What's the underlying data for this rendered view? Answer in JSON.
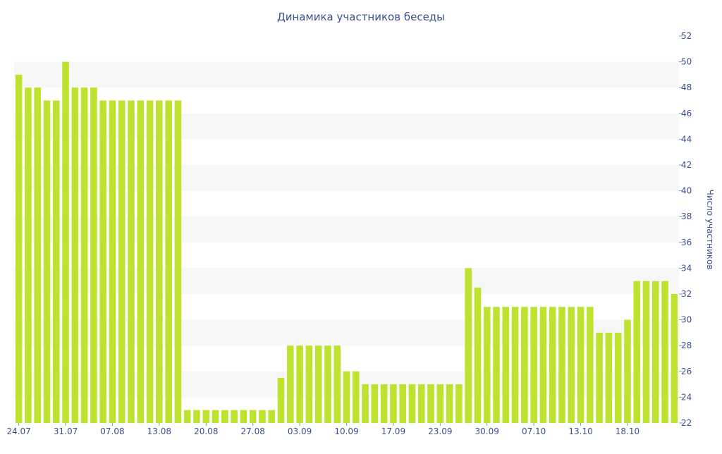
{
  "chart_data": {
    "type": "bar",
    "title": "Динамика участников беседы",
    "ylabel": "Число участников",
    "xlabel": "",
    "ylim": [
      22,
      52
    ],
    "y_ticks": [
      22,
      24,
      26,
      28,
      30,
      32,
      34,
      36,
      38,
      40,
      42,
      44,
      46,
      48,
      50,
      52
    ],
    "y_axis_side": "right",
    "x_ticks": [
      "24.07",
      "31.07",
      "07.08",
      "13.08",
      "20.08",
      "27.08",
      "03.09",
      "10.09",
      "17.09",
      "23.09",
      "30.09",
      "07.10",
      "13.10",
      "18.10"
    ],
    "x_tick_positions": [
      0,
      5,
      10,
      15,
      20,
      25,
      30,
      35,
      40,
      45,
      50,
      55,
      60,
      65
    ],
    "grid": "alternating horizontal bands",
    "colors": {
      "bar": "#bde32e",
      "band": "#f7f7f7",
      "axis_text": "#3b4f8c",
      "title": "#3b4f8c"
    },
    "series": [
      {
        "values": [
          49,
          48,
          48,
          47,
          47,
          50,
          48,
          48,
          48,
          47,
          47,
          47,
          47,
          47,
          47,
          47,
          47,
          47,
          23,
          23,
          23,
          23,
          23,
          23,
          23,
          23,
          23,
          23,
          25.5,
          28,
          28,
          28,
          28,
          28,
          28,
          26,
          26,
          25,
          25,
          25,
          25,
          25,
          25,
          25,
          25,
          25,
          25,
          25,
          34,
          32.5,
          31,
          31,
          31,
          31,
          31,
          31,
          31,
          31,
          31,
          31,
          31,
          31,
          29,
          29,
          29,
          30,
          33,
          33,
          33,
          33,
          32
        ]
      }
    ]
  }
}
